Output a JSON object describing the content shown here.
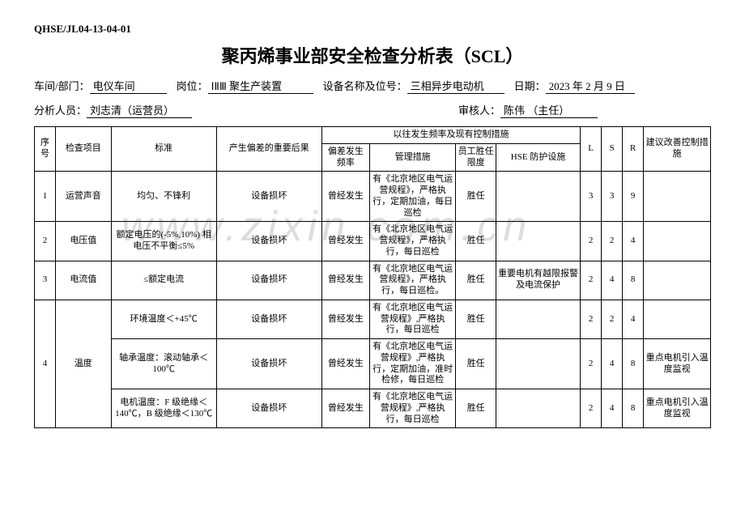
{
  "doc_code": "QHSE/JL04-13-04-01",
  "title": "聚丙烯事业部安全检查分析表（SCL）",
  "meta": {
    "dept_label": "车间/部门：",
    "dept": "电仪车间",
    "post_label": "岗位：",
    "post": "ⅠⅡⅢ 聚生产装置",
    "equip_label": "设备名称及位号：",
    "equip": "三相异步电动机",
    "date_label": "日期：",
    "date": "2023 年 2 月 9 日",
    "analyst_label": "分析人员：",
    "analyst": "刘志清（运营员）",
    "reviewer_label": "审核人：",
    "reviewer": "陈伟 （主任）"
  },
  "headers": {
    "seq": "序号",
    "item": "检查项目",
    "std": "标准",
    "cons": "产生偏差的重要后果",
    "history_group": "以往发生频率及现有控制措施",
    "freq": "偏差发生频率",
    "mgmt": "管理措施",
    "comp": "员工胜任限度",
    "hse": "HSE 防护设施",
    "L": "L",
    "S": "S",
    "R": "R",
    "sugg": "建议改善控制措施"
  },
  "rows": [
    {
      "seq": "1",
      "item": "运营声音",
      "std": "均匀、不锋利",
      "cons": "设备损坏",
      "freq": "曾经发生",
      "mgmt": "有《北京地区电气运营规程》，严格执行，定期加油，每日巡检",
      "comp": "胜任",
      "hse": "",
      "L": "3",
      "S": "3",
      "R": "9",
      "sugg": "",
      "span": 1
    },
    {
      "seq": "2",
      "item": "电压值",
      "std": "额定电压的(-5%,10%) 相电压不平衡≤5%",
      "cons": "设备损坏",
      "freq": "曾经发生",
      "mgmt": "有《北京地区电气运营规程》，严格执行，每日巡检",
      "comp": "胜任",
      "hse": "",
      "L": "2",
      "S": "2",
      "R": "4",
      "sugg": "",
      "span": 1
    },
    {
      "seq": "3",
      "item": "电流值",
      "std": "≤额定电流",
      "cons": "设备损坏",
      "freq": "曾经发生",
      "mgmt": "有《北京地区电气运营规程》，严格执行，每日巡检。",
      "comp": "胜任",
      "hse": "重要电机有越限报警及电流保护",
      "L": "2",
      "S": "4",
      "R": "8",
      "sugg": "",
      "span": 1
    },
    {
      "seq": "4",
      "item": "温度",
      "span": 3,
      "sub": [
        {
          "std": "环境温度＜+45℃",
          "cons": "设备损坏",
          "freq": "曾经发生",
          "mgmt": "有《北京地区电气运营规程》,严格执行，每日巡检",
          "comp": "胜任",
          "hse": "",
          "L": "2",
          "S": "2",
          "R": "4",
          "sugg": ""
        },
        {
          "std": "轴承温度：滚动轴承＜100℃",
          "cons": "设备损坏",
          "freq": "曾经发生",
          "mgmt": "有《北京地区电气运营规程》,严格执行，定期加油，准时检修，每日巡检",
          "comp": "胜任",
          "hse": "",
          "L": "2",
          "S": "4",
          "R": "8",
          "sugg": "重点电机引入温度监视"
        },
        {
          "std": "电机温度：F 级绝缘＜140℃，B 级绝缘＜130℃",
          "cons": "设备损坏",
          "freq": "曾经发生",
          "mgmt": "有《北京地区电气运营规程》,严格执行，每日巡检",
          "comp": "胜任",
          "hse": "",
          "L": "2",
          "S": "4",
          "R": "8",
          "sugg": "重点电机引入温度监视"
        }
      ]
    }
  ],
  "watermark": "www.zixin.com.cn"
}
